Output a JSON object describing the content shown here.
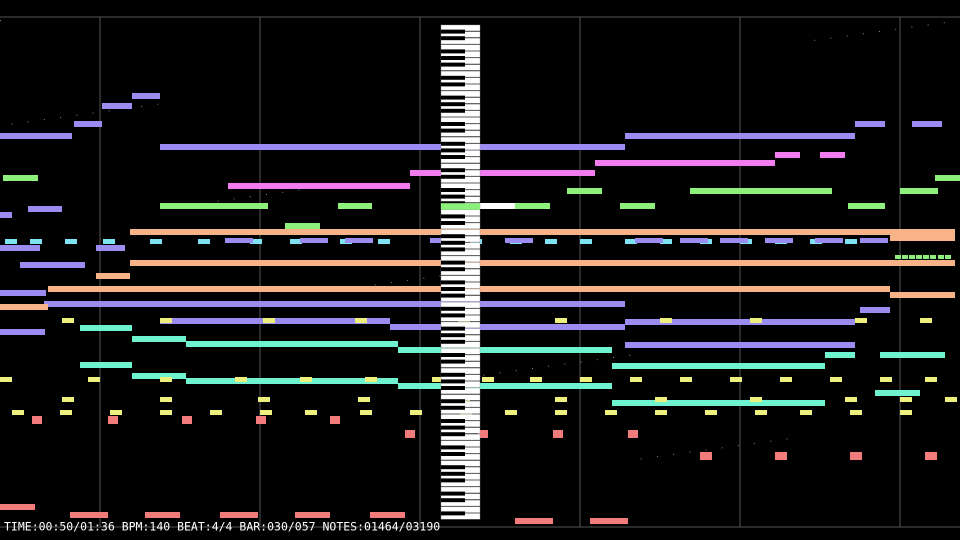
{
  "status_bar": "TIME:00:50/01:36 BPM:140 BEAT:4/4 BAR:030/057 NOTES:01464/03190"
}
